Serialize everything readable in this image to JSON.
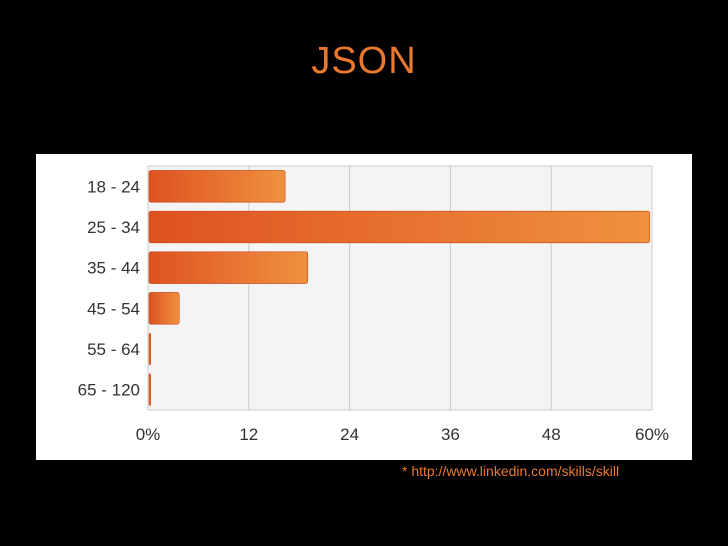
{
  "slide": {
    "title": "JSON",
    "source_note": "* http://www.linkedin.com/skills/skill"
  },
  "colors": {
    "background": "#000000",
    "accent_text": "#e8792f",
    "bar_start": "#de5220",
    "bar_end": "#ef9140",
    "plot_bg": "#f4f4f4",
    "grid": "#cccccc"
  },
  "chart_data": {
    "type": "bar",
    "orientation": "horizontal",
    "categories": [
      "18 - 24",
      "25 - 34",
      "35 - 44",
      "45 - 54",
      "55 - 64",
      "65 - 120"
    ],
    "values": [
      16.2,
      59.6,
      18.9,
      3.6,
      0.2,
      0.2
    ],
    "x_ticks": [
      "0%",
      "12",
      "24",
      "36",
      "48",
      "60%"
    ],
    "x_tick_values": [
      0,
      12,
      24,
      36,
      48,
      60
    ],
    "xlim": [
      0,
      60
    ],
    "title": "",
    "xlabel": "",
    "ylabel": "",
    "grid": true,
    "legend": "none"
  }
}
